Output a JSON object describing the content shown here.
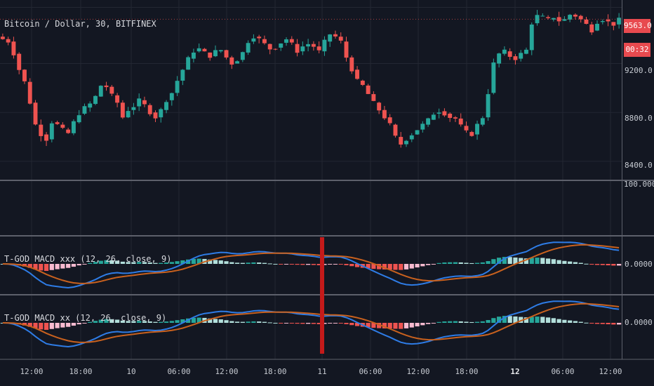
{
  "chart_data": [
    {
      "type": "candlestick",
      "title": "Bitcoin / Dollar, 30, BITFINEX",
      "y_ticks": [
        "9200.0",
        "8800.0",
        "8400.0"
      ],
      "y_tick_values": [
        9200,
        8800,
        8400
      ],
      "ylim": [
        8250,
        9720
      ],
      "last_price": "9563.0",
      "countdown": "00:32",
      "close_path": [
        9400,
        9380,
        9280,
        9150,
        9050,
        8880,
        8700,
        8620,
        8580,
        8720,
        8700,
        8660,
        8630,
        8720,
        8790,
        8840,
        8870,
        8930,
        9020,
        9010,
        8940,
        8880,
        8760,
        8820,
        8850,
        8900,
        8860,
        8800,
        8760,
        8820,
        8900,
        8960,
        9060,
        9150,
        9240,
        9300,
        9320,
        9290,
        9260,
        9300,
        9310,
        9250,
        9200,
        9230,
        9290,
        9380,
        9420,
        9400,
        9360,
        9320,
        9330,
        9370,
        9400,
        9360,
        9300,
        9340,
        9360,
        9340,
        9300,
        9380,
        9440,
        9420,
        9380,
        9250,
        9150,
        9060,
        9020,
        8950,
        8880,
        8820,
        8760,
        8700,
        8600,
        8540,
        8580,
        8620,
        8660,
        8700,
        8740,
        8790,
        8810,
        8790,
        8760,
        8750,
        8690,
        8640,
        8620,
        8700,
        8760,
        8960,
        9200,
        9280,
        9300,
        9260,
        9240,
        9280,
        9310,
        9530,
        9590,
        9580,
        9560,
        9580,
        9550,
        9560,
        9600,
        9590,
        9560,
        9520,
        9470,
        9540,
        9560,
        9540,
        9520,
        9560
      ]
    },
    {
      "type": "line",
      "title": "T-GOD MACD xxx (12, 26, close, 9)",
      "zero_label": "0.0000",
      "y_tick": "100.0000",
      "series": [
        {
          "color": "#2962ff"
        },
        {
          "color": "#ef6c00"
        },
        {
          "color": "#26a69a"
        },
        {
          "color": "#ef5350"
        }
      ]
    },
    {
      "type": "line",
      "title": "T-GOD MACD xx (12, 26, close, 9)",
      "zero_label": "0.0000"
    }
  ],
  "x_ticks": [
    {
      "label": "12:00",
      "bold": false
    },
    {
      "label": "18:00",
      "bold": false
    },
    {
      "label": "10",
      "bold": false
    },
    {
      "label": "06:00",
      "bold": false
    },
    {
      "label": "12:00",
      "bold": false
    },
    {
      "label": "18:00",
      "bold": false
    },
    {
      "label": "11",
      "bold": false
    },
    {
      "label": "06:00",
      "bold": false
    },
    {
      "label": "12:00",
      "bold": false
    },
    {
      "label": "18:00",
      "bold": false
    },
    {
      "label": "12",
      "bold": true
    },
    {
      "label": "06:00",
      "bold": false
    },
    {
      "label": "12:00",
      "bold": false
    }
  ],
  "colors": {
    "background": "#131722",
    "grid": "#232733",
    "up": "#26a69a",
    "down": "#ef5350",
    "macd": "#2e7ce6",
    "signal": "#c9611e",
    "marker": "#c41a1a",
    "separator": "#5d606b"
  }
}
